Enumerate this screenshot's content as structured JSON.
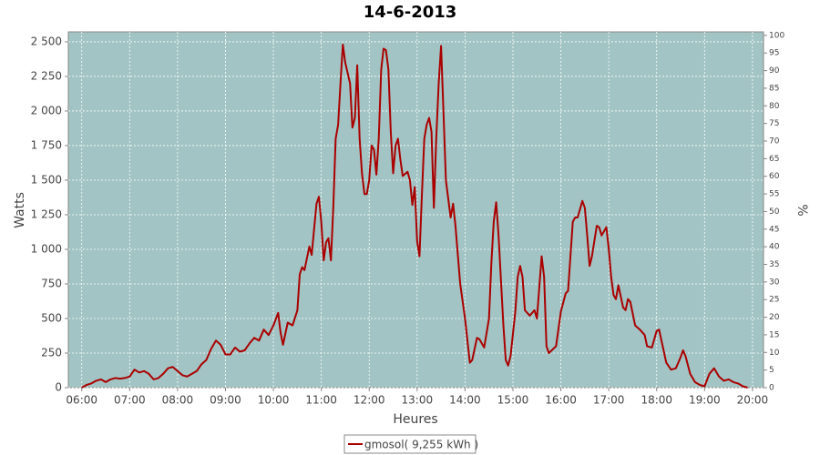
{
  "chart_data": {
    "type": "line",
    "title": "14-6-2013",
    "x_label": "Heures",
    "y_label": "Watts",
    "y2_label": "%",
    "xlim": [
      5.72,
      20.23
    ],
    "xticks": [
      {
        "value": 6,
        "label": "06:00"
      },
      {
        "value": 7,
        "label": "07:00"
      },
      {
        "value": 8,
        "label": "08:00"
      },
      {
        "value": 9,
        "label": "09:00"
      },
      {
        "value": 10,
        "label": "10:00"
      },
      {
        "value": 11,
        "label": "11:00"
      },
      {
        "value": 12,
        "label": "12:00"
      },
      {
        "value": 13,
        "label": "13:00"
      },
      {
        "value": 14,
        "label": "14:00"
      },
      {
        "value": 15,
        "label": "15:00"
      },
      {
        "value": 16,
        "label": "16:00"
      },
      {
        "value": 17,
        "label": "17:00"
      },
      {
        "value": 18,
        "label": "18:00"
      },
      {
        "value": 19,
        "label": "19:00"
      },
      {
        "value": 20,
        "label": "20:00"
      }
    ],
    "ylim": [
      0,
      2572
    ],
    "yticks": [
      0,
      250,
      500,
      750,
      {
        "value": 1000,
        "label": "1 000"
      },
      {
        "value": 1250,
        "label": "1 250"
      },
      {
        "value": 1500,
        "label": "1 500"
      },
      {
        "value": 1750,
        "label": "1 750"
      },
      {
        "value": 2000,
        "label": "2 000"
      },
      {
        "value": 2250,
        "label": "2 250"
      },
      {
        "value": 2500,
        "label": "2 500"
      }
    ],
    "y2lim": [
      0,
      101
    ],
    "y2ticks": [
      0,
      5,
      10,
      15,
      20,
      25,
      30,
      35,
      40,
      45,
      50,
      55,
      60,
      65,
      70,
      75,
      80,
      85,
      90,
      95,
      100
    ],
    "grid": true,
    "background": "#a2c4c4",
    "legend": "bottom",
    "x": [
      6.0,
      6.1,
      6.2,
      6.3,
      6.4,
      6.5,
      6.6,
      6.7,
      6.8,
      6.9,
      7.0,
      7.1,
      7.2,
      7.3,
      7.4,
      7.5,
      7.6,
      7.7,
      7.8,
      7.9,
      8.0,
      8.1,
      8.2,
      8.3,
      8.4,
      8.5,
      8.6,
      8.7,
      8.8,
      8.9,
      9.0,
      9.1,
      9.2,
      9.3,
      9.4,
      9.5,
      9.6,
      9.7,
      9.8,
      9.9,
      10.0,
      10.1,
      10.15,
      10.2,
      10.3,
      10.4,
      10.5,
      10.55,
      10.6,
      10.65,
      10.75,
      10.8,
      10.85,
      10.9,
      10.95,
      11.0,
      11.05,
      11.1,
      11.15,
      11.2,
      11.25,
      11.3,
      11.35,
      11.4,
      11.45,
      11.5,
      11.6,
      11.65,
      11.7,
      11.75,
      11.8,
      11.85,
      11.9,
      11.95,
      12.0,
      12.05,
      12.1,
      12.15,
      12.2,
      12.25,
      12.3,
      12.35,
      12.4,
      12.45,
      12.5,
      12.55,
      12.6,
      12.65,
      12.7,
      12.8,
      12.85,
      12.9,
      12.95,
      13.0,
      13.05,
      13.1,
      13.15,
      13.2,
      13.25,
      13.3,
      13.35,
      13.4,
      13.45,
      13.5,
      13.55,
      13.6,
      13.7,
      13.75,
      13.8,
      13.9,
      14.0,
      14.1,
      14.15,
      14.25,
      14.3,
      14.4,
      14.5,
      14.55,
      14.6,
      14.65,
      14.7,
      14.8,
      14.85,
      14.9,
      14.95,
      15.05,
      15.1,
      15.15,
      15.2,
      15.25,
      15.35,
      15.45,
      15.5,
      15.6,
      15.65,
      15.7,
      15.75,
      15.9,
      16.0,
      16.1,
      16.15,
      16.25,
      16.3,
      16.35,
      16.45,
      16.5,
      16.55,
      16.6,
      16.65,
      16.75,
      16.8,
      16.85,
      16.95,
      17.0,
      17.05,
      17.1,
      17.15,
      17.2,
      17.3,
      17.35,
      17.4,
      17.45,
      17.55,
      17.65,
      17.75,
      17.8,
      17.9,
      18.0,
      18.05,
      18.1,
      18.2,
      18.3,
      18.4,
      18.5,
      18.55,
      18.6,
      18.7,
      18.8,
      18.9,
      19.0,
      19.1,
      19.2,
      19.3,
      19.4,
      19.5,
      19.6,
      19.7,
      19.8,
      19.9
    ],
    "series": [
      {
        "name": "gmosol( 9,255 kWh )",
        "color": "#aa0000",
        "values": [
          0,
          20,
          30,
          50,
          60,
          40,
          60,
          70,
          65,
          70,
          80,
          130,
          110,
          120,
          100,
          60,
          70,
          100,
          140,
          150,
          120,
          90,
          80,
          100,
          120,
          170,
          200,
          280,
          340,
          310,
          240,
          240,
          290,
          260,
          270,
          320,
          360,
          340,
          420,
          380,
          450,
          540,
          400,
          310,
          470,
          450,
          560,
          820,
          870,
          850,
          1020,
          960,
          1150,
          1330,
          1380,
          1200,
          920,
          1050,
          1080,
          920,
          1300,
          1800,
          1900,
          2200,
          2480,
          2350,
          2200,
          1880,
          1950,
          2330,
          1800,
          1550,
          1400,
          1400,
          1500,
          1750,
          1720,
          1540,
          1800,
          2300,
          2450,
          2440,
          2300,
          1850,
          1550,
          1750,
          1800,
          1650,
          1530,
          1560,
          1500,
          1320,
          1450,
          1060,
          950,
          1400,
          1800,
          1900,
          1950,
          1850,
          1300,
          1800,
          2200,
          2470,
          2000,
          1500,
          1230,
          1330,
          1170,
          750,
          500,
          180,
          200,
          360,
          350,
          290,
          500,
          900,
          1200,
          1340,
          1100,
          450,
          200,
          160,
          230,
          550,
          800,
          880,
          800,
          560,
          520,
          560,
          500,
          950,
          800,
          300,
          250,
          300,
          550,
          680,
          700,
          1200,
          1230,
          1230,
          1350,
          1300,
          1100,
          880,
          950,
          1170,
          1160,
          1100,
          1160,
          1000,
          800,
          670,
          640,
          740,
          580,
          560,
          640,
          620,
          450,
          420,
          380,
          300,
          290,
          410,
          420,
          340,
          180,
          130,
          140,
          220,
          270,
          230,
          100,
          40,
          20,
          10,
          100,
          140,
          80,
          50,
          60,
          40,
          30,
          10,
          0
        ]
      }
    ]
  }
}
